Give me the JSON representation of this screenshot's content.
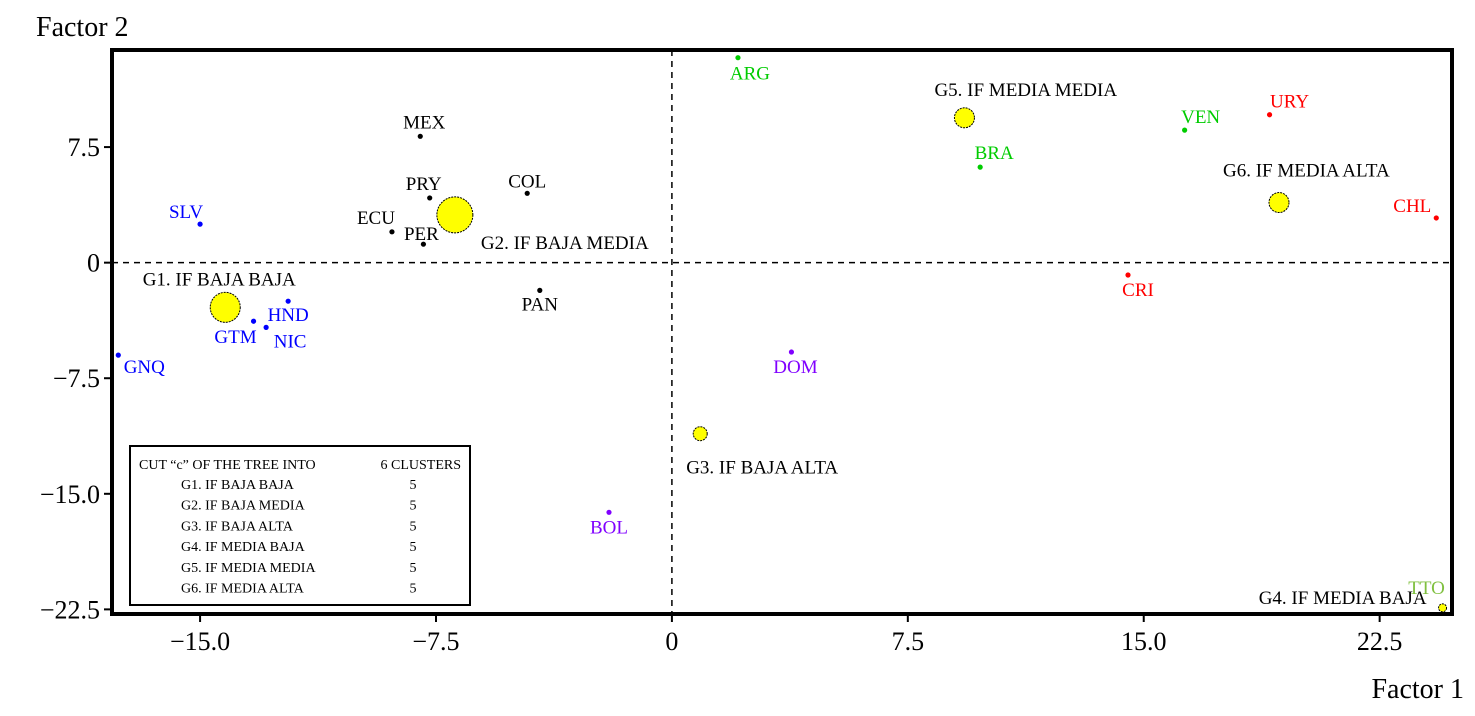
{
  "chart_data": {
    "type": "scatter",
    "xlabel": "Factor 1",
    "ylabel": "Factor 2",
    "xlim": [
      -17.8,
      24.8
    ],
    "ylim": [
      -22.8,
      13.8
    ],
    "xticks": [
      -15.0,
      -7.5,
      0,
      7.5,
      15.0,
      22.5
    ],
    "xtick_labels": [
      "−15.0",
      "−7.5",
      "0",
      "7.5",
      "15.0",
      "22.5"
    ],
    "yticks": [
      7.5,
      0,
      -7.5,
      -15.0,
      -22.5
    ],
    "ytick_labels": [
      "7.5",
      "0",
      "−7.5",
      "−15.0",
      "−22.5"
    ],
    "grid": false,
    "reference_lines": {
      "x": 0,
      "y": 0,
      "style": "dashed"
    },
    "groups": [
      {
        "id": "G1",
        "label": "G1. IF BAJA BAJA",
        "color": "#0000ff",
        "centroid": [
          -14.2,
          -2.9
        ]
      },
      {
        "id": "G2",
        "label": "G2. IF BAJA MEDIA",
        "color": "#000000",
        "centroid": [
          -6.9,
          3.1
        ]
      },
      {
        "id": "G3",
        "label": "G3. IF BAJA ALTA",
        "color": "#8000ff",
        "centroid": [
          0.9,
          -11.1
        ]
      },
      {
        "id": "G4",
        "label": "G4. IF MEDIA BAJA",
        "color": "#80c040",
        "centroid": [
          24.5,
          -22.4
        ]
      },
      {
        "id": "G5",
        "label": "G5. IF MEDIA MEDIA",
        "color": "#00cc00",
        "centroid": [
          9.3,
          9.4
        ]
      },
      {
        "id": "G6",
        "label": "G6. IF MEDIA ALTA",
        "color": "#ff0000",
        "centroid": [
          19.3,
          3.9
        ]
      }
    ],
    "centroid_color": "#ffff00",
    "points": [
      {
        "name": "SLV",
        "group": "G1",
        "x": -15.0,
        "y": 2.5
      },
      {
        "name": "HND",
        "group": "G1",
        "x": -12.2,
        "y": -2.5
      },
      {
        "name": "GTM",
        "group": "G1",
        "x": -13.3,
        "y": -3.8
      },
      {
        "name": "NIC",
        "group": "G1",
        "x": -12.9,
        "y": -4.2
      },
      {
        "name": "GNQ",
        "group": "G1",
        "x": -17.6,
        "y": -6.0
      },
      {
        "name": "MEX",
        "group": "G2",
        "x": -8.0,
        "y": 8.2
      },
      {
        "name": "COL",
        "group": "G2",
        "x": -4.6,
        "y": 4.5
      },
      {
        "name": "PRY",
        "group": "G2",
        "x": -7.7,
        "y": 4.2
      },
      {
        "name": "ECU",
        "group": "G2",
        "x": -8.9,
        "y": 2.0
      },
      {
        "name": "PER",
        "group": "G2",
        "x": -7.9,
        "y": 1.2
      },
      {
        "name": "PAN",
        "group": "G2",
        "x": -4.2,
        "y": -1.8
      },
      {
        "name": "BOL",
        "group": "G3",
        "x": -2.0,
        "y": -16.2
      },
      {
        "name": "DOM",
        "group": "G3",
        "x": 3.8,
        "y": -5.8
      },
      {
        "name": "TTO",
        "group": "G4",
        "x": 24.5,
        "y": -22.4
      },
      {
        "name": "ARG",
        "group": "G5",
        "x": 2.1,
        "y": 13.3
      },
      {
        "name": "BRA",
        "group": "G5",
        "x": 9.8,
        "y": 6.2
      },
      {
        "name": "VEN",
        "group": "G5",
        "x": 16.3,
        "y": 8.6
      },
      {
        "name": "URY",
        "group": "G6",
        "x": 19.0,
        "y": 9.6
      },
      {
        "name": "CHL",
        "group": "G6",
        "x": 24.3,
        "y": 2.9
      },
      {
        "name": "CRI",
        "group": "G6",
        "x": 14.5,
        "y": -0.8
      }
    ],
    "legend": {
      "placement": "bottom-left",
      "header_left": "CUT “c” OF THE TREE INTO",
      "header_right": "6 CLUSTERS",
      "rows": [
        {
          "label": "G1. IF BAJA BAJA",
          "value": "5"
        },
        {
          "label": "G2. IF BAJA MEDIA",
          "value": "5"
        },
        {
          "label": "G3. IF BAJA ALTA",
          "value": "5"
        },
        {
          "label": "G4. IF MEDIA BAJA",
          "value": "5"
        },
        {
          "label": "G5. IF MEDIA MEDIA",
          "value": "5"
        },
        {
          "label": "G6. IF MEDIA ALTA",
          "value": "5"
        }
      ]
    }
  }
}
